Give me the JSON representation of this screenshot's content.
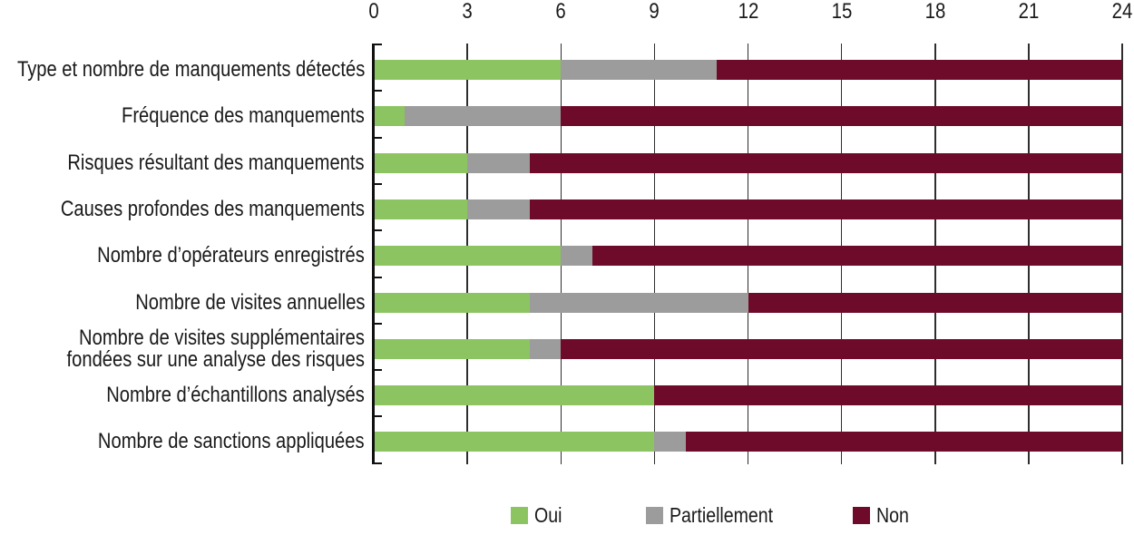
{
  "chart_data": {
    "type": "bar",
    "orientation": "horizontal",
    "stacked": true,
    "title": "",
    "x_axis": {
      "position": "top",
      "min": 0,
      "max": 24,
      "ticks": [
        0,
        3,
        6,
        9,
        12,
        15,
        18,
        21,
        24
      ]
    },
    "grid": "vertical",
    "categories": [
      "Type et nombre de manquements détectés",
      "Fréquence des manquements",
      "Risques résultant des manquements",
      "Causes profondes des manquements",
      "Nombre d’opérateurs enregistrés",
      "Nombre de visites annuelles",
      "Nombre de visites supplémentaires\nfondées sur une analyse des risques",
      "Nombre d’échantillons analysés",
      "Nombre de sanctions appliquées"
    ],
    "series": [
      {
        "name": "Oui",
        "color": "#8CC462",
        "values": [
          6,
          1,
          3,
          3,
          6,
          5,
          5,
          9,
          9
        ]
      },
      {
        "name": "Partiellement",
        "color": "#9D9C9C",
        "values": [
          5,
          5,
          2,
          2,
          1,
          7,
          1,
          0,
          1
        ]
      },
      {
        "name": "Non",
        "color": "#6E0B2A",
        "values": [
          13,
          18,
          19,
          19,
          17,
          12,
          18,
          15,
          14
        ]
      }
    ],
    "legend": {
      "position": "bottom",
      "entries": [
        "Oui",
        "Partiellement",
        "Non"
      ]
    }
  },
  "colors": {
    "axis": "#111111",
    "gridline": "#2E2E2E",
    "text": "#1A1A1A",
    "background": "#FFFFFF"
  }
}
